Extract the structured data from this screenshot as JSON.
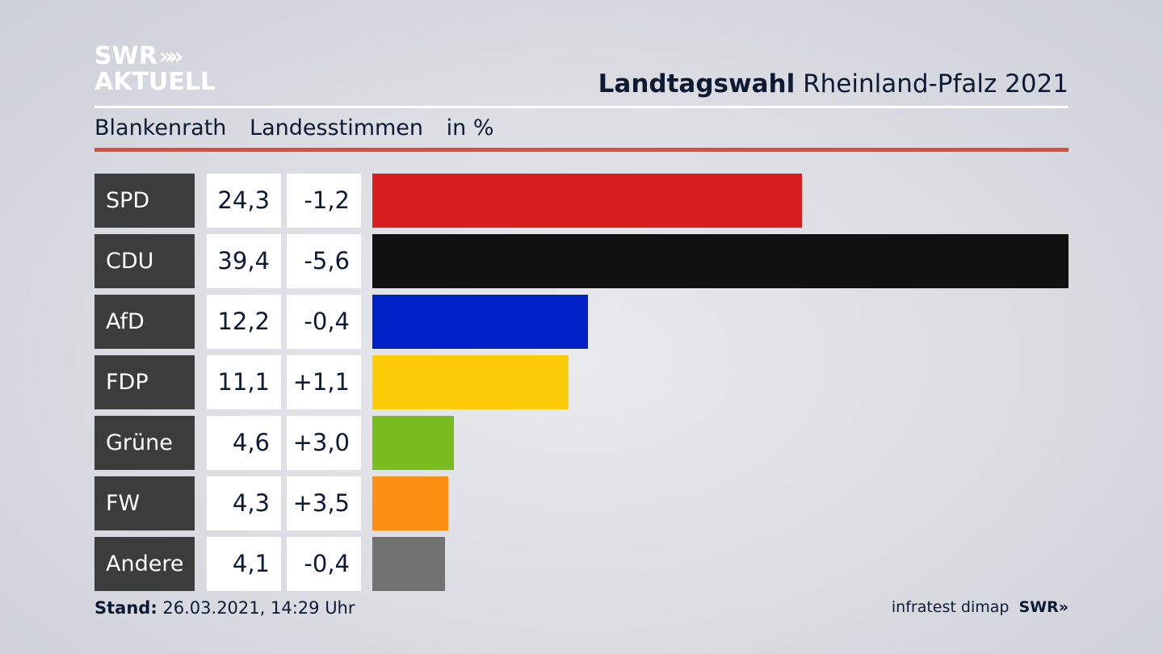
{
  "logo": {
    "line1": "SWR",
    "chevrons": "»",
    "line2": "AKTUELL"
  },
  "header": {
    "title_bold": "Landtagswahl",
    "title_rest": "Rheinland-Pfalz 2021"
  },
  "subheader": {
    "place": "Blankenrath",
    "measure": "Landesstimmen",
    "unit": "in %"
  },
  "footer": {
    "stand_label": "Stand:",
    "stand_value": "26.03.2021, 14:29 Uhr",
    "source": "infratest dimap",
    "brand": "SWR",
    "brand_chevrons": "»"
  },
  "chart_data": {
    "type": "bar",
    "orientation": "horizontal",
    "categories": [
      "SPD",
      "CDU",
      "AfD",
      "FDP",
      "Grüne",
      "FW",
      "Andere"
    ],
    "values": [
      24.3,
      39.4,
      12.2,
      11.1,
      4.6,
      4.3,
      4.1
    ],
    "value_labels": [
      "24,3",
      "39,4",
      "12,2",
      "11,1",
      "4,6",
      "4,3",
      "4,1"
    ],
    "diff_labels": [
      "-1,2",
      "-5,6",
      "-0,4",
      "+1,1",
      "+3,0",
      "+3,5",
      "-0,4"
    ],
    "colors": [
      "#d61f1f",
      "#111111",
      "#0021c8",
      "#fdcc08",
      "#78bc1e",
      "#fd9013",
      "#727272"
    ],
    "xlim": [
      0,
      39.4
    ]
  }
}
